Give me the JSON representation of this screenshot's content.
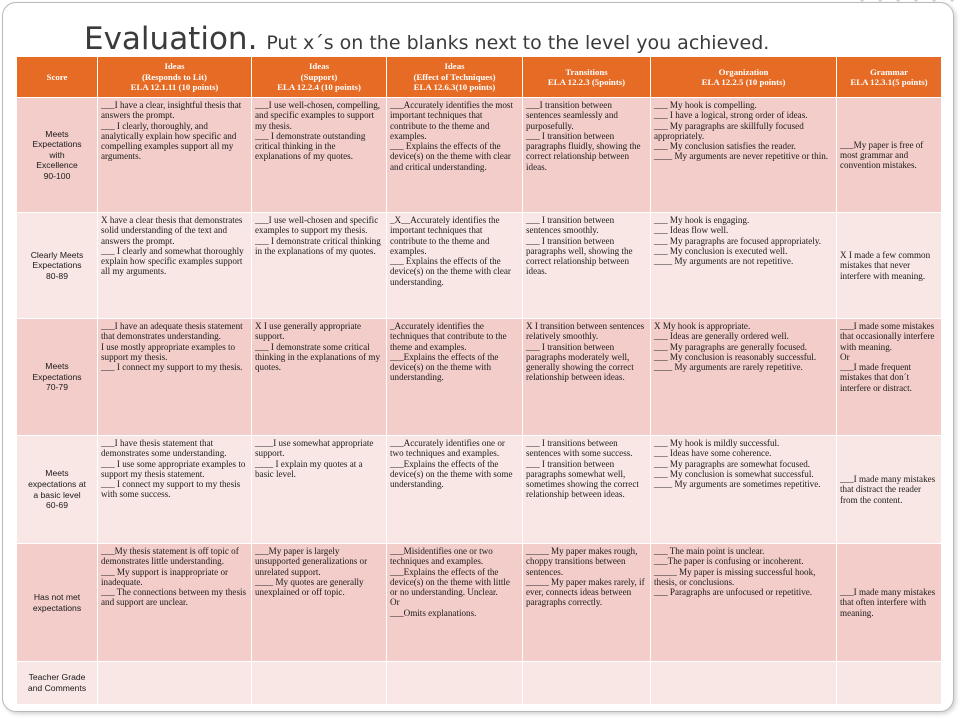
{
  "title": {
    "main": "Evaluation.",
    "sub": "Put x´s on the blanks next to the level you achieved."
  },
  "columns": [
    {
      "lines": [
        "Score"
      ]
    },
    {
      "lines": [
        "Ideas",
        "(Responds to Lit)",
        "ELA 12.1.11 (10 points)"
      ]
    },
    {
      "lines": [
        "Ideas",
        "(Support)",
        "ELA 12.2.4 (10 points)"
      ]
    },
    {
      "lines": [
        "Ideas",
        "(Effect of Techniques)",
        "ELA 12.6.3(10 points)"
      ]
    },
    {
      "lines": [
        "Transitions",
        "ELA 12.2.3 (5points)"
      ]
    },
    {
      "lines": [
        "Organization",
        "ELA 12.2.5 (10 points)"
      ]
    },
    {
      "lines": [
        "Grammar",
        "ELA 12.3.1(5 points)"
      ]
    }
  ],
  "rows": [
    {
      "level": [
        "Meets",
        "Expectations",
        "with",
        "Excellence",
        "90-100"
      ],
      "cells": [
        [
          "___I have a clear, insightful thesis that answers the prompt.",
          "___ I clearly, thoroughly, and analytically explain how specific and compelling examples support all my arguments."
        ],
        [
          "___I use well-chosen, compelling, and specific examples to support my thesis.",
          "___ I demonstrate outstanding critical thinking in the explanations of my quotes."
        ],
        [
          "___Accurately identifies the most important techniques that contribute to the theme and examples.",
          "___ Explains the effects of the device(s) on the theme with clear and critical understanding."
        ],
        [
          "___I transition between sentences seamlessly and purposefully.",
          "___ I transition between paragraphs fluidly, showing the correct relationship between ideas."
        ],
        [
          "___ My hook is compelling.",
          "___ I have a logical, strong order of ideas.",
          "___ My paragraphs are skillfully focused appropriately.",
          "___ My conclusion satisfies the reader.",
          "____ My arguments are never repetitive or thin."
        ],
        [
          "___My paper is free of most grammar and convention mistakes."
        ]
      ]
    },
    {
      "level": [
        "Clearly Meets",
        "Expectations",
        "80-89"
      ],
      "cells": [
        [
          "X have a clear thesis that demonstrates solid understanding of the text and answers the prompt.",
          "___ I clearly and somewhat thoroughly explain how specific examples support all my arguments."
        ],
        [
          "___I use well-chosen and specific examples to support my thesis.",
          "___ I demonstrate critical thinking in the explanations of my quotes."
        ],
        [
          "_X__Accurately identifies the important techniques that contribute to the theme and examples.",
          "___ Explains the effects of the device(s) on the theme with clear understanding."
        ],
        [
          "___ I transition between sentences smoothly.",
          "___ I transition between paragraphs well, showing the correct relationship between ideas."
        ],
        [
          "___ My hook is engaging.",
          "___ Ideas flow well.",
          "___ My paragraphs are focused appropriately.",
          "___ My conclusion is executed well.",
          "____ My arguments are not repetitive."
        ],
        [
          "X I made a few common mistakes that never interfere with meaning."
        ]
      ]
    },
    {
      "level": [
        "Meets",
        "Expectations",
        "70-79"
      ],
      "cells": [
        [
          "___I have an adequate thesis statement that demonstrates understanding.",
          "I use mostly appropriate examples to support my thesis.",
          "___ I connect my support to my thesis."
        ],
        [
          "X I use generally appropriate support.",
          "___ I demonstrate some critical thinking in the explanations of my quotes."
        ],
        [
          "_Accurately identifies the techniques that contribute to the theme and examples.",
          "___Explains the effects of the device(s) on the theme with understanding."
        ],
        [
          "X I transition between sentences relatively smoothly.",
          "___ I transition between paragraphs moderately well, generally showing the correct relationship between ideas."
        ],
        [
          "X My hook is appropriate.",
          "___ Ideas are generally ordered well.",
          "___ My paragraphs are generally focused.",
          "___ My conclusion is reasonably successful.",
          "____ My arguments are rarely repetitive."
        ],
        [
          "___I made some mistakes that occasionally interfere with meaning.",
          "Or",
          "___I made frequent mistakes that don´t interfere or distract."
        ]
      ]
    },
    {
      "level": [
        "Meets",
        "expectations at",
        "a basic level",
        "60-69"
      ],
      "cells": [
        [
          "___I have thesis statement that demonstrates some understanding.",
          "___ I use some appropriate examples to support my thesis statement.",
          "___ I connect my support to my thesis with some success."
        ],
        [
          "____I use somewhat appropriate support.",
          "____ I explain my quotes at a basic level."
        ],
        [
          "___Accurately identifies one or two techniques and examples.",
          "___Explains the effects of the device(s) on the theme with some understanding."
        ],
        [
          "___ I transitions between sentences with some success.",
          "___ I transition between paragraphs somewhat well, sometimes showing the correct relationship between ideas."
        ],
        [
          "___ My hook is mildly successful.",
          "___ Ideas have some coherence.",
          "___ My paragraphs are somewhat focused.",
          "___ My conclusion is somewhat successful.",
          "____ My arguments are sometimes repetitive."
        ],
        [
          "___I made many mistakes that distract the reader from the content."
        ]
      ]
    },
    {
      "level": [
        "Has not met",
        "expectations"
      ],
      "cells": [
        [
          "___My thesis statement is off topic of demonstrates little understanding.",
          "___ My support is inappropriate or inadequate.",
          "___ The connections between my thesis and support are unclear."
        ],
        [
          "___My paper is largely unsupported generalizations or unrelated support.",
          "____ My quotes are generally unexplained or off topic."
        ],
        [
          "___Misidentifies one or two techniques and examples.",
          "___Explains the effects of the device(s) on the theme with little or no understanding. Unclear.",
          "Or",
          "___Omits explanations."
        ],
        [
          "_____ My paper makes rough, choppy transitions between sentences.",
          "_____ My paper makes rarely, if ever, connects ideas between paragraphs correctly."
        ],
        [
          "___ The main point is unclear.",
          "___The paper is confusing or incoherent.",
          "_____ My paper is missing successful hook, thesis, or conclusions.",
          "___ Paragraphs are unfocused or repetitive."
        ],
        [
          "___I made many mistakes that often interfere with meaning."
        ]
      ]
    },
    {
      "level": [
        "Teacher Grade",
        "and Comments"
      ],
      "cells": [
        [],
        [],
        [],
        [],
        [],
        []
      ]
    }
  ]
}
